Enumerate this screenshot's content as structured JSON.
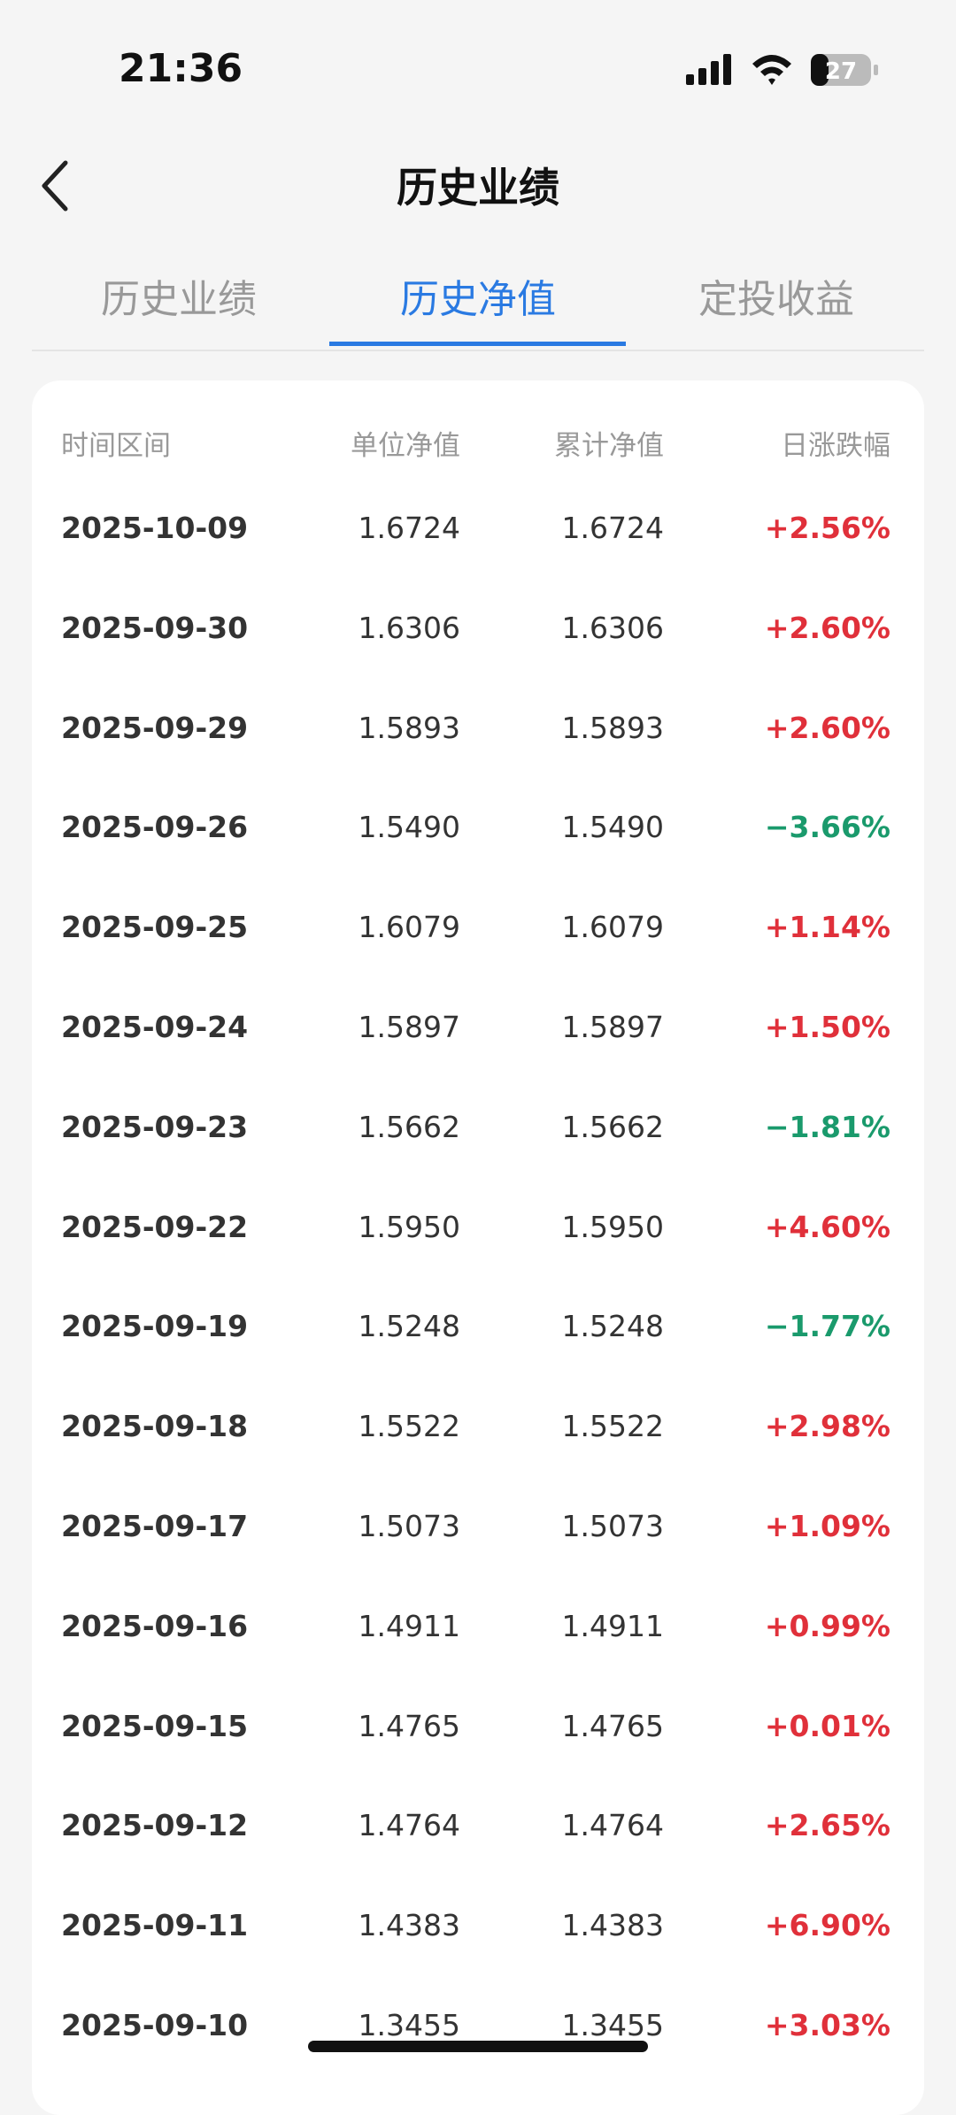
{
  "status_bar": {
    "time": "21:36",
    "battery": "27"
  },
  "header": {
    "title": "历史业绩"
  },
  "tabs": [
    "历史业绩",
    "历史净值",
    "定投收益"
  ],
  "active_tab": 1,
  "table": {
    "columns": [
      "时间区间",
      "单位净值",
      "累计净值",
      "日涨跌幅"
    ],
    "rows": [
      [
        "2025-10-09",
        "1.6724",
        "1.6724",
        "+2.56%"
      ],
      [
        "2025-09-30",
        "1.6306",
        "1.6306",
        "+2.60%"
      ],
      [
        "2025-09-29",
        "1.5893",
        "1.5893",
        "+2.60%"
      ],
      [
        "2025-09-26",
        "1.5490",
        "1.5490",
        "−3.66%"
      ],
      [
        "2025-09-25",
        "1.6079",
        "1.6079",
        "+1.14%"
      ],
      [
        "2025-09-24",
        "1.5897",
        "1.5897",
        "+1.50%"
      ],
      [
        "2025-09-23",
        "1.5662",
        "1.5662",
        "−1.81%"
      ],
      [
        "2025-09-22",
        "1.5950",
        "1.5950",
        "+4.60%"
      ],
      [
        "2025-09-19",
        "1.5248",
        "1.5248",
        "−1.77%"
      ],
      [
        "2025-09-18",
        "1.5522",
        "1.5522",
        "+2.98%"
      ],
      [
        "2025-09-17",
        "1.5073",
        "1.5073",
        "+1.09%"
      ],
      [
        "2025-09-16",
        "1.4911",
        "1.4911",
        "+0.99%"
      ],
      [
        "2025-09-15",
        "1.4765",
        "1.4765",
        "+0.01%"
      ],
      [
        "2025-09-12",
        "1.4764",
        "1.4764",
        "+2.65%"
      ],
      [
        "2025-09-11",
        "1.4383",
        "1.4383",
        "+6.90%"
      ],
      [
        "2025-09-10",
        "1.3455",
        "1.3455",
        "+3.03%"
      ]
    ]
  }
}
